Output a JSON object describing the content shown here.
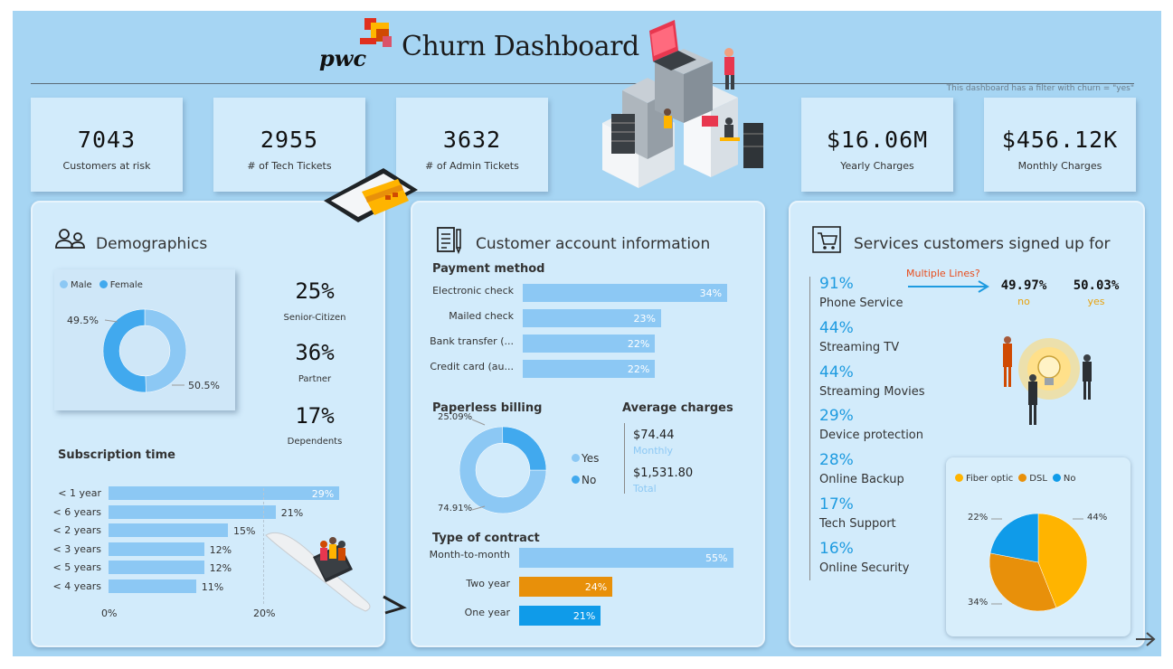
{
  "header": {
    "brand": "pwc",
    "title": "Churn Dashboard",
    "filter_note": "This dashboard has a filter with churn = \"yes\""
  },
  "kpis": [
    {
      "value": "7043",
      "label": "Customers at risk"
    },
    {
      "value": "2955",
      "label": "# of Tech Tickets"
    },
    {
      "value": "3632",
      "label": "# of Admin Tickets"
    },
    {
      "value": "$16.06M",
      "label": "Yearly Charges"
    },
    {
      "value": "$456.12K",
      "label": "Monthly Charges"
    }
  ],
  "demographics": {
    "title": "Demographics",
    "gender_legend": [
      "Male",
      "Female"
    ],
    "gender_labels": [
      "49.5%",
      "50.5%"
    ],
    "stats": [
      {
        "value": "25%",
        "label": "Senior-Citizen"
      },
      {
        "value": "36%",
        "label": "Partner"
      },
      {
        "value": "17%",
        "label": "Dependents"
      }
    ],
    "subscription_title": "Subscription time",
    "subscription_rows": [
      {
        "label": "< 1 year",
        "value": "29%"
      },
      {
        "label": "< 6 years",
        "value": "21%"
      },
      {
        "label": "< 2 years",
        "value": "15%"
      },
      {
        "label": "< 3 years",
        "value": "12%"
      },
      {
        "label": "< 5 years",
        "value": "12%"
      },
      {
        "label": "< 4 years",
        "value": "11%"
      }
    ],
    "axis_ticks": [
      "0%",
      "20%"
    ]
  },
  "account": {
    "title": "Customer account information",
    "payment_title": "Payment method",
    "payment_rows": [
      {
        "label": "Electronic check",
        "value": "34%"
      },
      {
        "label": "Mailed check",
        "value": "23%"
      },
      {
        "label": "Bank transfer (...",
        "value": "22%"
      },
      {
        "label": "Credit card (au...",
        "value": "22%"
      }
    ],
    "paperless_title": "Paperless billing",
    "paperless_labels": [
      "25.09%",
      "74.91%"
    ],
    "paperless_legend": [
      "Yes",
      "No"
    ],
    "avg_title": "Average charges",
    "avg_monthly_value": "$74.44",
    "avg_monthly_label": "Monthly",
    "avg_total_value": "$1,531.80",
    "avg_total_label": "Total",
    "contract_title": "Type of contract",
    "contract_rows": [
      {
        "label": "Month-to-month",
        "value": "55%"
      },
      {
        "label": "Two year",
        "value": "24%"
      },
      {
        "label": "One year",
        "value": "21%"
      }
    ]
  },
  "services": {
    "title": "Services customers signed up for",
    "items": [
      {
        "pct": "91%",
        "name": "Phone Service"
      },
      {
        "pct": "44%",
        "name": "Streaming TV"
      },
      {
        "pct": "44%",
        "name": "Streaming Movies"
      },
      {
        "pct": "29%",
        "name": "Device protection"
      },
      {
        "pct": "28%",
        "name": "Online Backup"
      },
      {
        "pct": "17%",
        "name": "Tech Support"
      },
      {
        "pct": "16%",
        "name": "Online Security"
      }
    ],
    "multiple_lines_label": "Multiple Lines?",
    "multiple_lines_no_value": "49.97%",
    "multiple_lines_no_label": "no",
    "multiple_lines_yes_value": "50.03%",
    "multiple_lines_yes_label": "yes",
    "internet_legend": [
      "Fiber optic",
      "DSL",
      "No"
    ],
    "internet_labels": [
      "22%",
      "44%",
      "34%"
    ]
  },
  "colors": {
    "background": "#a6d5f3",
    "card": "#d2ebfb",
    "bar_blue": "#8cc8f4",
    "donut_light": "#8cc8f4",
    "donut_dark": "#41a9ee",
    "two_year": "#e8900a",
    "one_year": "#0f9be9",
    "fiber": "#ffb400",
    "dsl": "#e8900a",
    "no_internet": "#0f9be9",
    "accent_pct": "#1e9be0",
    "orange_text": "#e8a20d",
    "multiple_lines_label": "#e84c1c"
  },
  "chart_data": [
    {
      "type": "pie",
      "categories": [
        "Male",
        "Female"
      ],
      "values": [
        49.5,
        50.5
      ]
    },
    {
      "type": "bar",
      "title": "Subscription time",
      "categories": [
        "< 1 year",
        "< 6 years",
        "< 2 years",
        "< 3 years",
        "< 5 years",
        "< 4 years"
      ],
      "values": [
        29,
        21,
        15,
        12,
        12,
        11
      ]
    },
    {
      "type": "bar",
      "title": "Payment method",
      "categories": [
        "Electronic check",
        "Mailed check",
        "Bank transfer (...",
        "Credit card (au..."
      ],
      "values": [
        34,
        23,
        22,
        22
      ]
    },
    {
      "type": "pie",
      "title": "Paperless billing",
      "categories": [
        "Yes",
        "No"
      ],
      "values": [
        74.91,
        25.09
      ]
    },
    {
      "type": "bar",
      "title": "Type of contract",
      "categories": [
        "Month-to-month",
        "Two year",
        "One year"
      ],
      "values": [
        55,
        24,
        21
      ]
    },
    {
      "type": "pie",
      "categories": [
        "Fiber optic",
        "DSL",
        "No"
      ],
      "values": [
        44,
        34,
        22
      ]
    }
  ]
}
